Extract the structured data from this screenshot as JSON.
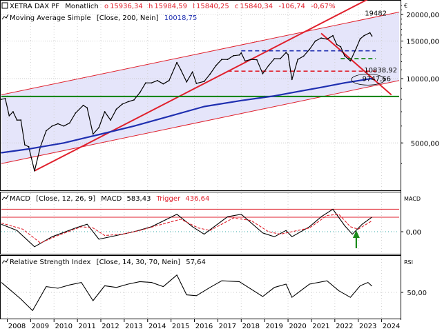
{
  "chart_data": [
    {
      "type": "line",
      "panel": "price",
      "legend_lines": [
        {
          "name": "XETRA DAX PF",
          "period": "Monatlich",
          "o": "15936,34",
          "h": "15984,59",
          "l": "15840,25",
          "c": "15840,34",
          "chg": "-106,74",
          "pct": "-0,67%"
        },
        {
          "name": "Moving Average Simple",
          "params": "[Close, 200, Nein]",
          "value": "10018,75"
        }
      ],
      "currency": "€",
      "y_scale": "log",
      "y_range": [
        3000,
        23000
      ],
      "y_ticks": [
        {
          "value": 5000,
          "label": "5000,00"
        },
        {
          "value": 10000,
          "label": "10000,00"
        },
        {
          "value": 15000,
          "label": "15000,00"
        },
        {
          "value": 20000,
          "label": "20000,00"
        }
      ],
      "annotations": [
        {
          "text": "19482",
          "value": 19482,
          "color": "#e0202c"
        },
        {
          "text": "10838,92",
          "value": 10838.92,
          "color": "#000000"
        },
        {
          "text": "9747,66",
          "value": 9747.66,
          "color": "#e0202c"
        }
      ],
      "x_range": [
        "2007-10",
        "2024-10"
      ],
      "series": [
        {
          "name": "XETRA DAX PF",
          "color": "#000000",
          "points": [
            [
              "2007-10",
              8000
            ],
            [
              "2007-12",
              8067
            ],
            [
              "2008-02",
              6700
            ],
            [
              "2008-04",
              7000
            ],
            [
              "2008-06",
              6400
            ],
            [
              "2008-08",
              6400
            ],
            [
              "2008-10",
              4900
            ],
            [
              "2008-12",
              4800
            ],
            [
              "2009-03",
              3700
            ],
            [
              "2009-06",
              4800
            ],
            [
              "2009-09",
              5700
            ],
            [
              "2009-12",
              6000
            ],
            [
              "2010-03",
              6150
            ],
            [
              "2010-06",
              6000
            ],
            [
              "2010-09",
              6200
            ],
            [
              "2010-12",
              6900
            ],
            [
              "2011-04",
              7500
            ],
            [
              "2011-06",
              7300
            ],
            [
              "2011-09",
              5500
            ],
            [
              "2011-12",
              5900
            ],
            [
              "2012-03",
              7000
            ],
            [
              "2012-06",
              6400
            ],
            [
              "2012-09",
              7200
            ],
            [
              "2012-12",
              7600
            ],
            [
              "2013-03",
              7800
            ],
            [
              "2013-06",
              7950
            ],
            [
              "2013-09",
              8600
            ],
            [
              "2013-12",
              9550
            ],
            [
              "2014-03",
              9550
            ],
            [
              "2014-06",
              9800
            ],
            [
              "2014-09",
              9450
            ],
            [
              "2014-12",
              9800
            ],
            [
              "2015-04",
              11900
            ],
            [
              "2015-06",
              11000
            ],
            [
              "2015-09",
              9650
            ],
            [
              "2015-12",
              10750
            ],
            [
              "2016-02",
              9500
            ],
            [
              "2016-06",
              9700
            ],
            [
              "2016-09",
              10500
            ],
            [
              "2016-12",
              11500
            ],
            [
              "2017-03",
              12300
            ],
            [
              "2017-06",
              12300
            ],
            [
              "2017-09",
              12800
            ],
            [
              "2017-12",
              12900
            ],
            [
              "2018-01",
              13200
            ],
            [
              "2018-03",
              12100
            ],
            [
              "2018-06",
              12300
            ],
            [
              "2018-09",
              12250
            ],
            [
              "2018-12",
              10550
            ],
            [
              "2019-03",
              11500
            ],
            [
              "2019-06",
              12400
            ],
            [
              "2019-09",
              12400
            ],
            [
              "2019-12",
              13250
            ],
            [
              "2020-01",
              12980
            ],
            [
              "2020-03",
              9900
            ],
            [
              "2020-06",
              12300
            ],
            [
              "2020-09",
              12750
            ],
            [
              "2020-12",
              13700
            ],
            [
              "2021-03",
              15000
            ],
            [
              "2021-06",
              15500
            ],
            [
              "2021-09",
              15300
            ],
            [
              "2021-12",
              15900
            ],
            [
              "2022-02",
              14450
            ],
            [
              "2022-04",
              14100
            ],
            [
              "2022-06",
              12800
            ],
            [
              "2022-09",
              12100
            ],
            [
              "2022-12",
              13900
            ],
            [
              "2023-02",
              15350
            ],
            [
              "2023-04",
              15900
            ],
            [
              "2023-07",
              16400
            ],
            [
              "2023-08",
              15840
            ]
          ]
        },
        {
          "name": "Moving Average Simple",
          "color": "#1f2fb0",
          "points": [
            [
              "2007-10",
              4500
            ],
            [
              "2009-01",
              4700
            ],
            [
              "2010-06",
              5000
            ],
            [
              "2012-01",
              5500
            ],
            [
              "2013-06",
              6000
            ],
            [
              "2015-01",
              6700
            ],
            [
              "2016-06",
              7400
            ],
            [
              "2018-01",
              7900
            ],
            [
              "2019-06",
              8300
            ],
            [
              "2020-06",
              8700
            ],
            [
              "2021-06",
              9100
            ],
            [
              "2022-06",
              9550
            ],
            [
              "2023-08",
              10018.75
            ]
          ]
        }
      ],
      "lines": [
        {
          "style": "trend",
          "color": "#e0202c",
          "from": [
            "2009-03",
            3700
          ],
          "to": [
            "2024-10",
            28000
          ]
        },
        {
          "style": "channel",
          "color": "#e0202c",
          "from": [
            "2007-10",
            8400
          ],
          "to": [
            "2024-10",
            20500
          ]
        },
        {
          "style": "channel",
          "color": "#e0202c",
          "from": [
            "2007-10",
            4000
          ],
          "to": [
            "2024-10",
            9800
          ]
        },
        {
          "style": "trend",
          "color": "#e0202c",
          "from": [
            "2021-06",
            16300
          ],
          "to": [
            "2024-06",
            8400
          ]
        },
        {
          "style": "horizontal",
          "color": "#008000",
          "value": 8250,
          "from": "2007-10",
          "to": "2024-10"
        },
        {
          "style": "dashed",
          "color": "#1f2fb0",
          "value": 13500,
          "from": "2018-01",
          "to": "2023-10"
        },
        {
          "style": "dashed",
          "color": "#e0202c",
          "value": 10838.92,
          "from": "2017-06",
          "to": "2023-10"
        },
        {
          "style": "dashed",
          "color": "#008000",
          "value": 12400,
          "from": "2022-04",
          "to": "2023-10"
        }
      ]
    },
    {
      "type": "line",
      "panel": "macd",
      "title": "MACD",
      "legend": {
        "name": "MACD",
        "params": "[Close, 12, 26, 9]",
        "macd_label": "MACD",
        "macd_value": "583,43",
        "trigger_label": "Trigger",
        "trigger_value": "436,64"
      },
      "y_ticks": [
        {
          "value": 0,
          "label": "0,00"
        }
      ],
      "reference_levels": [
        580,
        900
      ],
      "series": [
        {
          "name": "MACD",
          "color": "#000000",
          "points": [
            [
              "2007-10",
              300
            ],
            [
              "2008-06",
              50
            ],
            [
              "2009-03",
              -600
            ],
            [
              "2009-12",
              -200
            ],
            [
              "2010-12",
              150
            ],
            [
              "2011-06",
              300
            ],
            [
              "2011-12",
              -300
            ],
            [
              "2012-09",
              -150
            ],
            [
              "2013-06",
              0
            ],
            [
              "2014-03",
              200
            ],
            [
              "2015-04",
              700
            ],
            [
              "2015-12",
              200
            ],
            [
              "2016-06",
              -100
            ],
            [
              "2017-06",
              600
            ],
            [
              "2018-01",
              700
            ],
            [
              "2018-12",
              -50
            ],
            [
              "2019-06",
              -200
            ],
            [
              "2019-12",
              50
            ],
            [
              "2020-03",
              -200
            ],
            [
              "2020-12",
              200
            ],
            [
              "2021-06",
              600
            ],
            [
              "2021-12",
              900
            ],
            [
              "2022-06",
              250
            ],
            [
              "2022-10",
              -100
            ],
            [
              "2023-03",
              300
            ],
            [
              "2023-08",
              583.43
            ]
          ]
        },
        {
          "name": "Trigger",
          "color": "#e0202c",
          "dashed": true,
          "points": [
            [
              "2007-10",
              350
            ],
            [
              "2008-09",
              100
            ],
            [
              "2009-06",
              -450
            ],
            [
              "2010-03",
              -150
            ],
            [
              "2011-03",
              200
            ],
            [
              "2011-09",
              150
            ],
            [
              "2012-03",
              -150
            ],
            [
              "2012-12",
              -100
            ],
            [
              "2013-09",
              50
            ],
            [
              "2014-06",
              250
            ],
            [
              "2015-06",
              500
            ],
            [
              "2016-03",
              150
            ],
            [
              "2016-09",
              50
            ],
            [
              "2017-09",
              550
            ],
            [
              "2018-06",
              450
            ],
            [
              "2019-03",
              0
            ],
            [
              "2019-09",
              -100
            ],
            [
              "2020-03",
              0
            ],
            [
              "2020-12",
              150
            ],
            [
              "2021-09",
              650
            ],
            [
              "2022-03",
              700
            ],
            [
              "2022-09",
              200
            ],
            [
              "2023-01",
              100
            ],
            [
              "2023-08",
              436.64
            ]
          ]
        }
      ],
      "marker": {
        "type": "up-arrow",
        "color": "#1a8a1a",
        "date": "2022-12"
      }
    },
    {
      "type": "line",
      "panel": "rsi",
      "title": "RSI",
      "legend": {
        "name": "Relative Strength Index",
        "params": "[Close, 14, 30, 70, Nein]",
        "value": "57,64"
      },
      "y_ticks": [
        {
          "value": 50,
          "label": "50,00"
        }
      ],
      "series": [
        {
          "name": "Relative Strength Index",
          "color": "#000000",
          "points": [
            [
              "2007-10",
              62
            ],
            [
              "2008-03",
              52
            ],
            [
              "2008-08",
              42
            ],
            [
              "2009-02",
              28
            ],
            [
              "2009-09",
              57
            ],
            [
              "2010-03",
              55
            ],
            [
              "2010-09",
              59
            ],
            [
              "2011-03",
              62
            ],
            [
              "2011-09",
              40
            ],
            [
              "2012-03",
              58
            ],
            [
              "2012-09",
              56
            ],
            [
              "2013-03",
              60
            ],
            [
              "2013-09",
              63
            ],
            [
              "2014-03",
              62
            ],
            [
              "2014-09",
              57
            ],
            [
              "2015-04",
              71
            ],
            [
              "2015-09",
              47
            ],
            [
              "2016-02",
              46
            ],
            [
              "2016-09",
              56
            ],
            [
              "2017-03",
              64
            ],
            [
              "2017-12",
              63
            ],
            [
              "2018-12",
              45
            ],
            [
              "2019-06",
              56
            ],
            [
              "2019-12",
              60
            ],
            [
              "2020-03",
              44
            ],
            [
              "2020-12",
              60
            ],
            [
              "2021-09",
              64
            ],
            [
              "2022-03",
              52
            ],
            [
              "2022-09",
              44
            ],
            [
              "2023-02",
              58
            ],
            [
              "2023-06",
              62
            ],
            [
              "2023-08",
              57.64
            ]
          ]
        }
      ]
    }
  ],
  "x_axis": {
    "labels": [
      "2008",
      "2009",
      "2010",
      "2011",
      "2012",
      "2013",
      "2014",
      "2015",
      "2016",
      "2017",
      "2018",
      "2019",
      "2020",
      "2021",
      "2022",
      "2023",
      "2024"
    ]
  }
}
